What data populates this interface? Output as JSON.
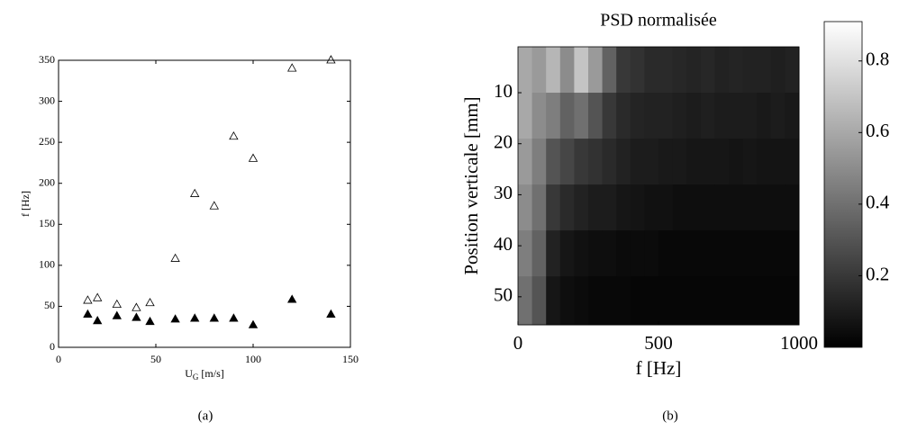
{
  "chart_data": [
    {
      "type": "scatter",
      "x_label": {
        "base": "U",
        "sub": "G",
        "unit": "[m/s]"
      },
      "y_label": "f [Hz]",
      "caption": "(a)",
      "xlim": [
        0,
        150
      ],
      "xticks": [
        0,
        50,
        100,
        150
      ],
      "ylim": [
        0,
        350
      ],
      "yticks": [
        0,
        50,
        100,
        150,
        200,
        250,
        300,
        350
      ],
      "series": [
        {
          "marker": "triangle-open",
          "color": "#000000",
          "x": [
            15,
            20,
            30,
            40,
            47,
            60,
            70,
            80,
            90,
            100,
            120,
            140
          ],
          "values": [
            57,
            60,
            52,
            48,
            54,
            108,
            187,
            172,
            257,
            230,
            340,
            350
          ]
        },
        {
          "marker": "triangle-filled",
          "color": "#000000",
          "x": [
            15,
            20,
            30,
            40,
            47,
            60,
            70,
            80,
            90,
            100,
            120,
            140
          ],
          "values": [
            40,
            32,
            38,
            36,
            31,
            34,
            35,
            35,
            35,
            27,
            58,
            40
          ]
        }
      ]
    },
    {
      "type": "heatmap",
      "title": "PSD normalisée",
      "x_label": "f [Hz]",
      "y_label": "Position verticale [mm]",
      "caption": "(b)",
      "colormap": "gray",
      "xlim": [
        0,
        1000
      ],
      "xticks": [
        0,
        500,
        1000
      ],
      "ylim": [
        55.5,
        1
      ],
      "yticks": [
        10,
        20,
        30,
        40,
        50
      ],
      "clim": [
        0,
        0.91
      ],
      "cticks": [
        0.2,
        0.4,
        0.6,
        0.8
      ],
      "x_bins": [
        0,
        50,
        100,
        150,
        200,
        250,
        300,
        350,
        400,
        450,
        500,
        550,
        600,
        650,
        700,
        750,
        800,
        850,
        900,
        950,
        1000
      ],
      "y_bins": [
        1,
        10,
        19,
        28,
        37,
        46,
        55.5
      ],
      "z": [
        [
          0.6,
          0.55,
          0.65,
          0.5,
          0.7,
          0.55,
          0.35,
          0.2,
          0.18,
          0.15,
          0.15,
          0.14,
          0.13,
          0.14,
          0.12,
          0.13,
          0.12,
          0.12,
          0.11,
          0.12
        ],
        [
          0.6,
          0.5,
          0.45,
          0.35,
          0.4,
          0.3,
          0.2,
          0.15,
          0.13,
          0.12,
          0.12,
          0.11,
          0.1,
          0.11,
          0.1,
          0.1,
          0.1,
          0.09,
          0.1,
          0.09
        ],
        [
          0.55,
          0.45,
          0.3,
          0.25,
          0.2,
          0.18,
          0.15,
          0.12,
          0.1,
          0.1,
          0.09,
          0.09,
          0.08,
          0.08,
          0.08,
          0.07,
          0.08,
          0.07,
          0.07,
          0.07
        ],
        [
          0.5,
          0.4,
          0.2,
          0.15,
          0.12,
          0.1,
          0.1,
          0.08,
          0.07,
          0.06,
          0.06,
          0.05,
          0.05,
          0.05,
          0.05,
          0.05,
          0.05,
          0.05,
          0.05,
          0.05
        ],
        [
          0.45,
          0.35,
          0.12,
          0.08,
          0.06,
          0.05,
          0.05,
          0.04,
          0.04,
          0.04,
          0.03,
          0.03,
          0.03,
          0.03,
          0.03,
          0.03,
          0.03,
          0.03,
          0.03,
          0.03
        ],
        [
          0.4,
          0.3,
          0.08,
          0.05,
          0.04,
          0.03,
          0.03,
          0.03,
          0.02,
          0.02,
          0.02,
          0.02,
          0.02,
          0.02,
          0.02,
          0.02,
          0.02,
          0.02,
          0.02,
          0.02
        ]
      ]
    }
  ]
}
